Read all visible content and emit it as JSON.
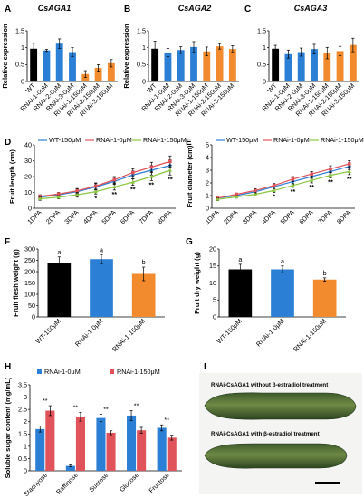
{
  "panels": [
    {
      "letter": "A"
    },
    {
      "letter": "B"
    },
    {
      "letter": "C"
    },
    {
      "letter": "D"
    },
    {
      "letter": "E"
    },
    {
      "letter": "F"
    },
    {
      "letter": "G"
    },
    {
      "letter": "H"
    },
    {
      "letter": "I"
    }
  ],
  "colors": {
    "black": "#000000",
    "blue": "#2b7fd4",
    "orange": "#f28a2e",
    "red": "#e0535a",
    "green": "#8cc63f"
  },
  "photo_captions": {
    "top": "RNAi-CsAGA1 without β-estradiol treatment",
    "bottom": "RNAi-CsAGA1 with β-estradiol treatment"
  },
  "chart_data": [
    {
      "panel": "A",
      "type": "bar",
      "title": "CsAGA1",
      "ylabel": "Relative expression",
      "ylim": [
        0,
        1.5
      ],
      "yticks": [
        "0",
        "0.5",
        "1",
        "1.5"
      ],
      "categories": [
        "WT",
        "RNAi-1-0μM",
        "RNAi-2-0μM",
        "RNAi-3-0μM",
        "RNAi-1-150μM",
        "RNAi-2-150μM",
        "RNAi-3-150μM"
      ],
      "values": [
        0.97,
        0.92,
        1.12,
        0.87,
        0.22,
        0.4,
        0.54
      ],
      "errors": [
        0.16,
        0.03,
        0.14,
        0.13,
        0.1,
        0.1,
        0.11
      ],
      "colors": [
        "black",
        "blue",
        "blue",
        "blue",
        "orange",
        "orange",
        "orange"
      ]
    },
    {
      "panel": "B",
      "type": "bar",
      "title": "CsAGA2",
      "ylabel": "Relative expression",
      "ylim": [
        0,
        1.5
      ],
      "yticks": [
        "0",
        "0.5",
        "1",
        "1.5"
      ],
      "categories": [
        "WT",
        "RNAi-1-0μM",
        "RNAi-2-0μM",
        "RNAi-3-0μM",
        "RNAi-1-150μM",
        "RNAi-2-150μM",
        "RNAi-3-150μM"
      ],
      "values": [
        0.97,
        0.86,
        0.93,
        1.02,
        0.89,
        1.04,
        0.96
      ],
      "errors": [
        0.22,
        0.12,
        0.1,
        0.16,
        0.13,
        0.08,
        0.1
      ],
      "colors": [
        "black",
        "blue",
        "blue",
        "blue",
        "orange",
        "orange",
        "orange"
      ]
    },
    {
      "panel": "C",
      "type": "bar",
      "title": "CsAGA3",
      "ylabel": "",
      "ylim": [
        0,
        1.5
      ],
      "yticks": [
        "0",
        "0.5",
        "1",
        "1.5"
      ],
      "categories": [
        "WT",
        "RNAi-1-0μM",
        "RNAi-2-0μM",
        "RNAi-3-0μM",
        "RNAi-1-150μM",
        "RNAi-2-150μM",
        "RNAi-3-150μM"
      ],
      "values": [
        0.97,
        0.81,
        0.87,
        0.96,
        0.84,
        0.9,
        1.08
      ],
      "errors": [
        0.1,
        0.12,
        0.12,
        0.14,
        0.17,
        0.14,
        0.2
      ],
      "colors": [
        "black",
        "blue",
        "blue",
        "blue",
        "orange",
        "orange",
        "orange"
      ]
    },
    {
      "panel": "D",
      "type": "line",
      "ylabel": "Fruit length (cm)",
      "ylim": [
        0,
        40
      ],
      "yticks": [
        "0",
        "10",
        "20",
        "30",
        "40"
      ],
      "categories": [
        "1DPA",
        "2DPA",
        "3DPA",
        "4DPA",
        "5DPA",
        "6DPA",
        "7DPA",
        "8DPA"
      ],
      "series": [
        {
          "name": "WT-150μM",
          "color": "blue",
          "values": [
            7,
            8.5,
            10.5,
            13.5,
            17,
            21,
            24,
            27
          ],
          "errors": [
            1,
            1,
            1.5,
            2,
            2,
            2.5,
            3,
            3.5
          ]
        },
        {
          "name": "RNAi-1-0μM",
          "color": "red",
          "values": [
            7.5,
            9,
            11,
            14,
            18,
            22.5,
            26,
            29.5
          ],
          "errors": [
            1,
            1,
            1.5,
            2,
            2,
            2.5,
            3,
            3.5
          ]
        },
        {
          "name": "RNAi-1-150μM",
          "color": "green",
          "values": [
            6,
            7,
            8.5,
            10.5,
            13.5,
            16.5,
            20,
            24
          ],
          "errors": [
            1,
            1,
            1.5,
            1.5,
            2,
            2,
            2.5,
            3
          ]
        }
      ],
      "sig_marks": [
        "",
        "",
        "",
        "*",
        "**",
        "**",
        "**",
        "**"
      ]
    },
    {
      "panel": "E",
      "type": "line",
      "ylabel": "Fruit diameter (cm)",
      "ylim": [
        0,
        5
      ],
      "yticks": [
        "0",
        "1",
        "2",
        "3",
        "4",
        "5"
      ],
      "categories": [
        "1DPA",
        "2DPA",
        "3DPA",
        "4DPA",
        "5DPA",
        "6DPA",
        "7DPA",
        "8DPA"
      ],
      "series": [
        {
          "name": "WT-150μM",
          "color": "blue",
          "values": [
            0.8,
            1.0,
            1.3,
            1.7,
            2.1,
            2.5,
            2.9,
            3.3
          ],
          "errors": [
            0.1,
            0.1,
            0.15,
            0.15,
            0.2,
            0.2,
            0.25,
            0.25
          ]
        },
        {
          "name": "RNAi-1-0μM",
          "color": "red",
          "values": [
            0.8,
            1.1,
            1.4,
            1.8,
            2.3,
            2.7,
            3.1,
            3.5
          ],
          "errors": [
            0.1,
            0.1,
            0.15,
            0.15,
            0.2,
            0.2,
            0.25,
            0.25
          ]
        },
        {
          "name": "RNAi-1-150μM",
          "color": "green",
          "values": [
            0.7,
            0.9,
            1.1,
            1.4,
            1.8,
            2.2,
            2.6,
            2.9
          ],
          "errors": [
            0.1,
            0.1,
            0.1,
            0.15,
            0.15,
            0.2,
            0.2,
            0.25
          ]
        }
      ],
      "sig_marks": [
        "",
        "",
        "",
        "*",
        "**",
        "**",
        "**",
        "**"
      ]
    },
    {
      "panel": "F",
      "type": "bar",
      "ylabel": "Fruit flesh weight (g)",
      "ylim": [
        0,
        300
      ],
      "yticks": [
        "0",
        "50",
        "100",
        "150",
        "200",
        "250",
        "300"
      ],
      "categories": [
        "WT-150μM",
        "RNAi-1-0μM",
        "RNAi-1-150μM"
      ],
      "values": [
        240,
        255,
        190
      ],
      "errors": [
        25,
        20,
        30
      ],
      "colors": [
        "black",
        "blue",
        "orange"
      ],
      "letters": [
        "a",
        "a",
        "b"
      ]
    },
    {
      "panel": "G",
      "type": "bar",
      "ylabel": "Fruit dry weight (g)",
      "ylim": [
        0,
        20
      ],
      "yticks": [
        "0",
        "5",
        "10",
        "15",
        "20"
      ],
      "categories": [
        "WT-150μM",
        "RNAi-1-0μM",
        "RNAi-1-150μM"
      ],
      "values": [
        14,
        14,
        11
      ],
      "errors": [
        1.5,
        1,
        0.5
      ],
      "colors": [
        "black",
        "blue",
        "orange"
      ],
      "letters": [
        "a",
        "a",
        "b"
      ]
    },
    {
      "panel": "H",
      "type": "bar",
      "ylabel": "Soluble sugar content (mg/mL)",
      "ylim": [
        0,
        3.5
      ],
      "yticks": [
        "0",
        "0.5",
        "1",
        "1.5",
        "2",
        "2.5",
        "3",
        "3.5"
      ],
      "categories": [
        "Stachyose",
        "Raffinose",
        "Sucrose",
        "Glucose",
        "Fructose"
      ],
      "series": [
        {
          "name": "RNAi-1-0μM",
          "color": "blue",
          "values": [
            1.7,
            0.2,
            2.15,
            2.25,
            1.75
          ],
          "errors": [
            0.12,
            0.04,
            0.15,
            0.2,
            0.12
          ]
        },
        {
          "name": "RNAi-1-150μM",
          "color": "red",
          "values": [
            2.45,
            2.2,
            1.55,
            1.65,
            1.35
          ],
          "errors": [
            0.2,
            0.18,
            0.08,
            0.12,
            0.1
          ]
        }
      ],
      "sig_marks": [
        "**",
        "**",
        "**",
        "**",
        "**"
      ]
    }
  ]
}
